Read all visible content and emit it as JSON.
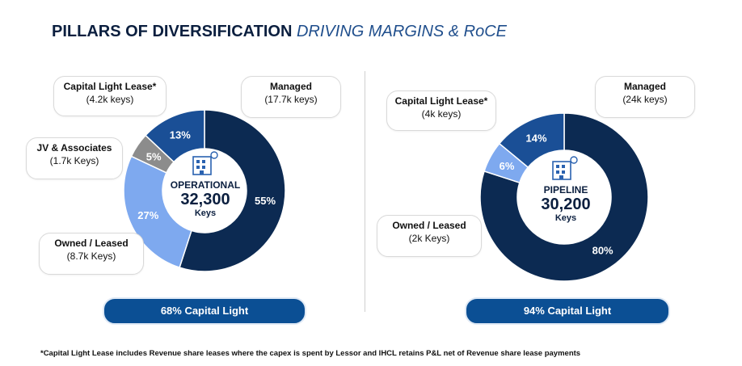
{
  "title": {
    "main": "PILLARS OF DIVERSIFICATION",
    "accent": "DRIVING MARGINS & RoCE"
  },
  "chart_data": [
    {
      "type": "pie",
      "name": "operational",
      "center": {
        "label": "OPERATIONAL",
        "value": "32,300",
        "unit": "Keys"
      },
      "slices": [
        {
          "name": "Managed",
          "sub": "(17.7k keys)",
          "value": 55,
          "label": "55%",
          "color": "#0c2a52"
        },
        {
          "name": "Owned / Leased",
          "sub": "(8.7k Keys)",
          "value": 27,
          "label": "27%",
          "color": "#7ea9ef"
        },
        {
          "name": "JV & Associates",
          "sub": "(1.7k Keys)",
          "value": 5,
          "label": "5%",
          "color": "#8c8c8c"
        },
        {
          "name": "Capital Light Lease*",
          "sub": "(4.2k keys)",
          "value": 13,
          "label": "13%",
          "color": "#1a4f96"
        }
      ],
      "footer": "68% Capital Light"
    },
    {
      "type": "pie",
      "name": "pipeline",
      "center": {
        "label": "PIPELINE",
        "value": "30,200",
        "unit": "Keys"
      },
      "slices": [
        {
          "name": "Managed",
          "sub": "(24k keys)",
          "value": 80,
          "label": "80%",
          "color": "#0c2a52"
        },
        {
          "name": "Owned / Leased",
          "sub": "(2k Keys)",
          "value": 6,
          "label": "6%",
          "color": "#7ea9ef"
        },
        {
          "name": "Capital Light Lease*",
          "sub": "(4k keys)",
          "value": 14,
          "label": "14%",
          "color": "#1a4f96"
        }
      ],
      "footer": "94% Capital Light"
    }
  ],
  "footnote": "*Capital Light Lease includes Revenue share leases where the capex is spent by Lessor and IHCL retains P&L net of Revenue share lease payments"
}
